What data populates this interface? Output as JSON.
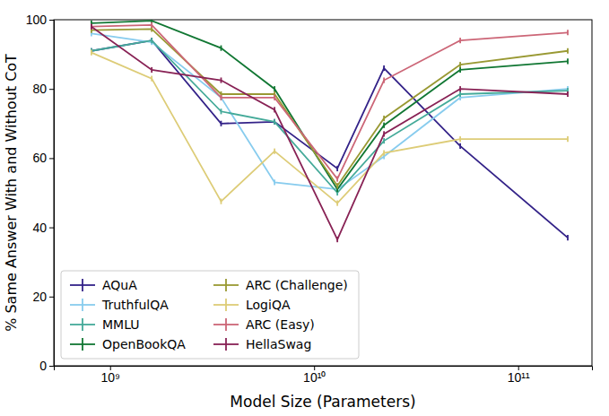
{
  "chart_data": {
    "type": "line",
    "x_label": "Model Size (Parameters)",
    "y_label": "% Same Answer With and Without CoT",
    "x": [
      810000000,
      1600000000,
      3500000000,
      6400000000,
      13000000000,
      22000000000,
      52000000000,
      175000000000
    ],
    "xlim": [
      530000000,
      230000000000
    ],
    "xticks": [
      {
        "value": 1000000000,
        "label": "10⁹"
      },
      {
        "value": 10000000000,
        "label": "10¹⁰"
      },
      {
        "value": 100000000000,
        "label": "10¹¹"
      }
    ],
    "ylim": [
      0,
      100
    ],
    "yticks": [
      0,
      20,
      40,
      60,
      80,
      100
    ],
    "log": "x",
    "legend": "lower left",
    "series": [
      {
        "name": "AQuA",
        "color": "#332288",
        "values": [
          91,
          94,
          70,
          70.5,
          57,
          86,
          63.5,
          37
        ],
        "errors": [
          0.8,
          0.8,
          0.8,
          0.8,
          0.8,
          0.8,
          0.8,
          0.8
        ]
      },
      {
        "name": "TruthfulQA",
        "color": "#88CCEE",
        "values": [
          96,
          93.5,
          77.5,
          53,
          51,
          60.5,
          77.5,
          80
        ],
        "errors": [
          0.8,
          0.8,
          0.8,
          0.8,
          0.8,
          0.8,
          0.8,
          0.8
        ]
      },
      {
        "name": "MMLU",
        "color": "#44AA99",
        "values": [
          91,
          94,
          73.5,
          70.5,
          50,
          65,
          78.5,
          79.5
        ],
        "errors": [
          0.8,
          0.8,
          0.8,
          0.8,
          0.8,
          0.8,
          0.8,
          0.8
        ]
      },
      {
        "name": "OpenBookQA",
        "color": "#117733",
        "values": [
          99,
          99.7,
          91.8,
          80,
          51,
          69.5,
          85.5,
          88
        ],
        "errors": [
          0.8,
          0.8,
          0.8,
          0.8,
          0.8,
          0.8,
          0.8,
          0.8
        ]
      },
      {
        "name": "ARC (Challenge)",
        "color": "#999933",
        "values": [
          97,
          97.3,
          78.5,
          78.5,
          52,
          71.5,
          87,
          91
        ],
        "errors": [
          0.8,
          0.8,
          0.8,
          0.8,
          0.8,
          0.8,
          0.8,
          0.8
        ]
      },
      {
        "name": "LogiQA",
        "color": "#DDCC77",
        "values": [
          90.5,
          83,
          47.5,
          62,
          47,
          61.5,
          65.5,
          65.5
        ],
        "errors": [
          0.8,
          0.8,
          0.8,
          0.8,
          0.8,
          0.8,
          0.8,
          0.8
        ]
      },
      {
        "name": "ARC (Easy)",
        "color": "#CC6677",
        "values": [
          98,
          98.5,
          77.5,
          77.5,
          54,
          82.5,
          94,
          96.3
        ],
        "errors": [
          0.8,
          0.8,
          0.8,
          0.8,
          0.8,
          0.8,
          0.8,
          0.8
        ]
      },
      {
        "name": "HellaSwag",
        "color": "#882255",
        "values": [
          98,
          85.5,
          82.5,
          74,
          36.5,
          67,
          80,
          78.5
        ],
        "errors": [
          0.8,
          0.8,
          0.8,
          0.8,
          0.8,
          0.8,
          0.8,
          0.8
        ]
      }
    ]
  }
}
